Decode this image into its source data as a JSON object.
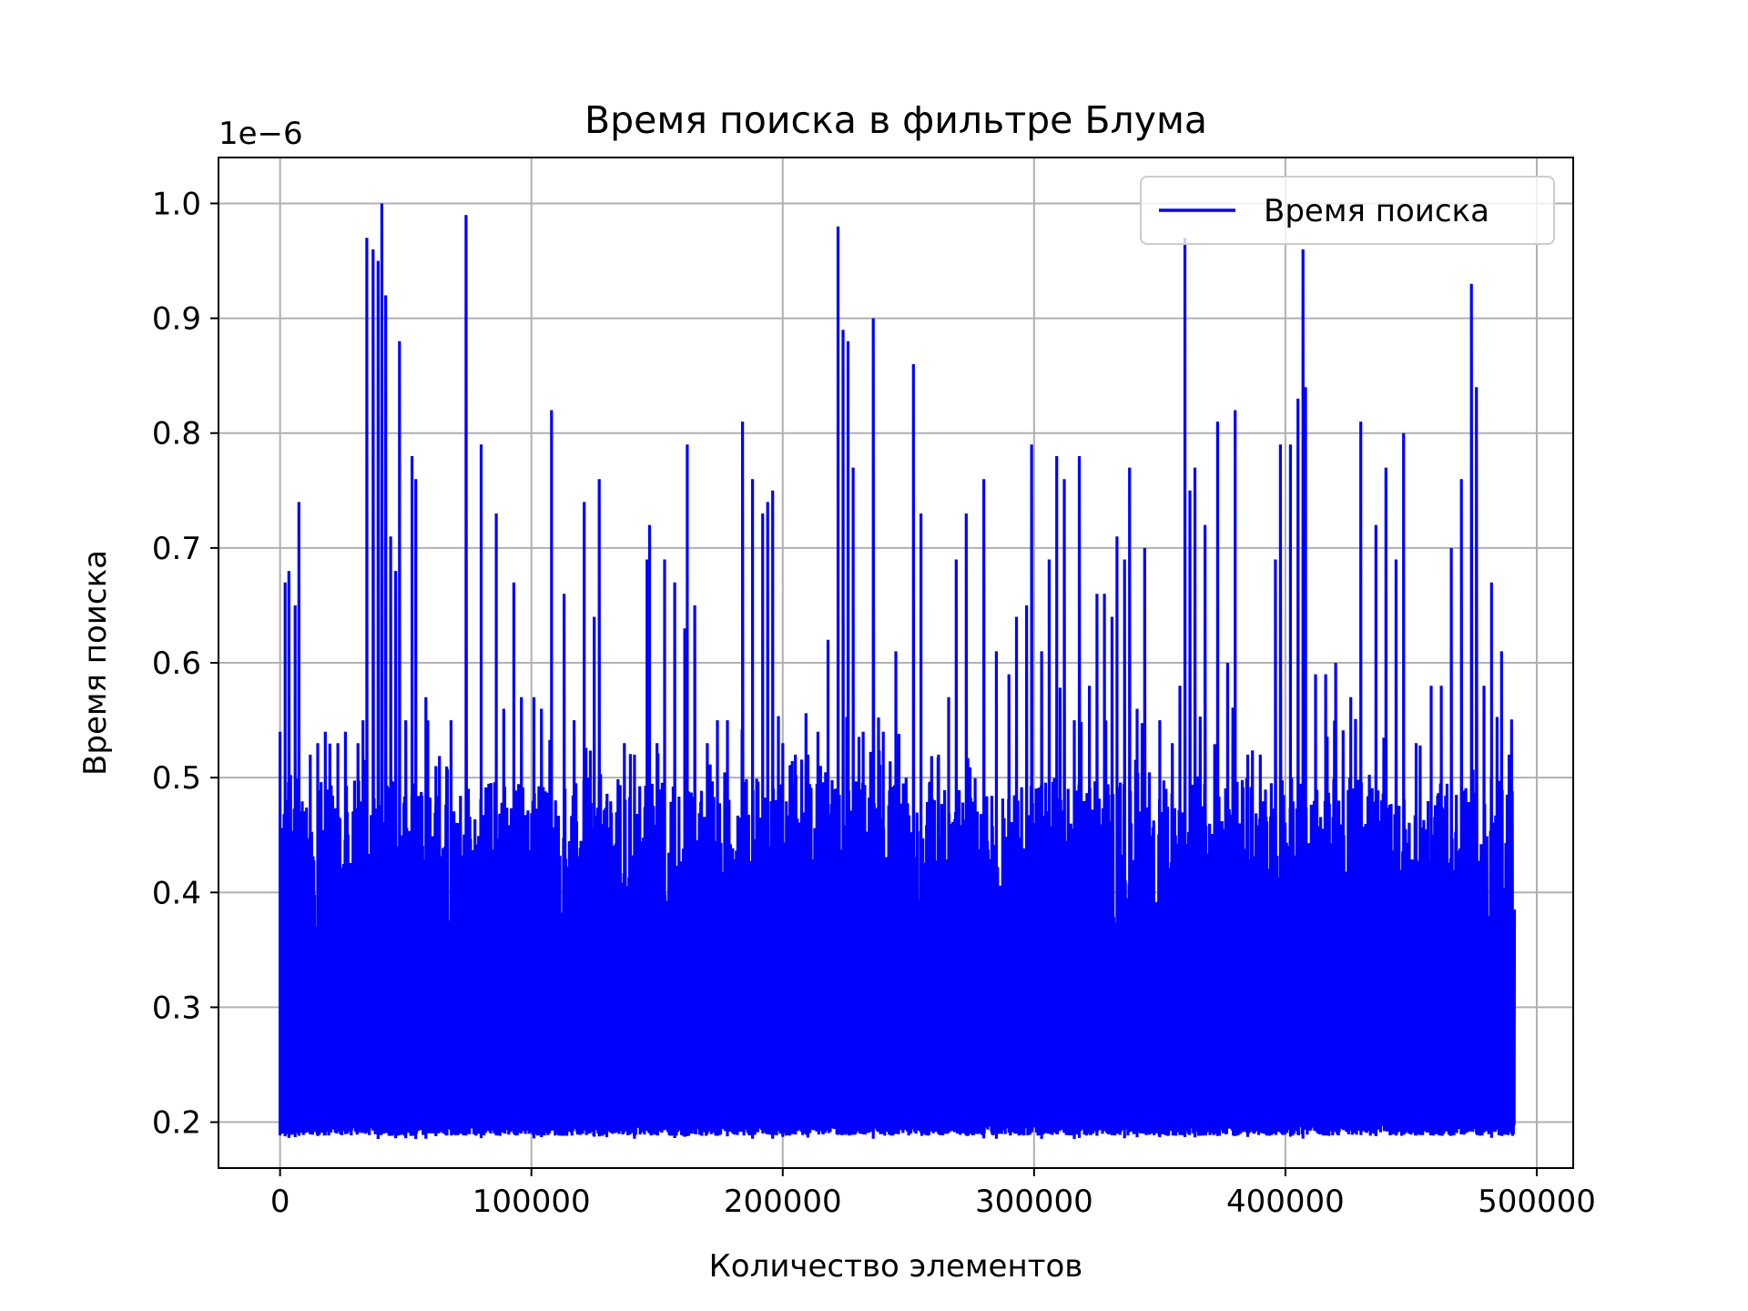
{
  "chart_data": {
    "type": "line",
    "title": "Время поиска в фильтре Блума",
    "xlabel": "Количество элементов",
    "ylabel": "Время поиска",
    "y_offset_label": "1e−6",
    "x_tick_labels": [
      "0",
      "100000",
      "200000",
      "300000",
      "400000",
      "500000"
    ],
    "x_ticks": [
      0,
      100000,
      200000,
      300000,
      400000,
      500000
    ],
    "y_tick_labels": [
      "0.2",
      "0.3",
      "0.4",
      "0.5",
      "0.6",
      "0.7",
      "0.8",
      "0.9",
      "1.0"
    ],
    "y_ticks": [
      0.2,
      0.3,
      0.4,
      0.5,
      0.6,
      0.7,
      0.8,
      0.9,
      1.0
    ],
    "xlim": [
      -24500,
      514500
    ],
    "ylim": [
      0.16,
      1.04
    ],
    "grid": true,
    "legend_position": "upper right",
    "series": [
      {
        "name": "Время поиска",
        "color": "#0000ff",
        "x_range": [
          0,
          491000
        ],
        "baseline_approx": 0.2,
        "dense_band_top_approx": 0.45,
        "peaks": [
          [
            0,
            0.54
          ],
          [
            2000,
            0.67
          ],
          [
            3500,
            0.68
          ],
          [
            6000,
            0.65
          ],
          [
            7500,
            0.74
          ],
          [
            12000,
            0.52
          ],
          [
            15000,
            0.53
          ],
          [
            18000,
            0.54
          ],
          [
            23000,
            0.53
          ],
          [
            26000,
            0.54
          ],
          [
            31000,
            0.53
          ],
          [
            33000,
            0.55
          ],
          [
            34500,
            0.97
          ],
          [
            37000,
            0.96
          ],
          [
            39000,
            0.95
          ],
          [
            40500,
            1.0
          ],
          [
            42000,
            0.92
          ],
          [
            44000,
            0.71
          ],
          [
            46000,
            0.68
          ],
          [
            47500,
            0.88
          ],
          [
            50000,
            0.55
          ],
          [
            52500,
            0.78
          ],
          [
            54000,
            0.76
          ],
          [
            58000,
            0.57
          ],
          [
            62000,
            0.51
          ],
          [
            68000,
            0.55
          ],
          [
            74000,
            0.99
          ],
          [
            80000,
            0.79
          ],
          [
            86000,
            0.73
          ],
          [
            89000,
            0.56
          ],
          [
            93000,
            0.67
          ],
          [
            96000,
            0.57
          ],
          [
            101000,
            0.57
          ],
          [
            104000,
            0.56
          ],
          [
            108000,
            0.82
          ],
          [
            113000,
            0.66
          ],
          [
            117000,
            0.55
          ],
          [
            121000,
            0.74
          ],
          [
            125000,
            0.64
          ],
          [
            127000,
            0.76
          ],
          [
            130000,
            0.48
          ],
          [
            137000,
            0.53
          ],
          [
            141000,
            0.52
          ],
          [
            146000,
            0.69
          ],
          [
            147000,
            0.72
          ],
          [
            150000,
            0.53
          ],
          [
            153000,
            0.69
          ],
          [
            157000,
            0.67
          ],
          [
            161000,
            0.63
          ],
          [
            162000,
            0.79
          ],
          [
            165000,
            0.65
          ],
          [
            170000,
            0.53
          ],
          [
            174000,
            0.55
          ],
          [
            178000,
            0.55
          ],
          [
            184000,
            0.81
          ],
          [
            188000,
            0.76
          ],
          [
            192000,
            0.73
          ],
          [
            194000,
            0.74
          ],
          [
            196000,
            0.75
          ],
          [
            200000,
            0.53
          ],
          [
            205000,
            0.52
          ],
          [
            210000,
            0.52
          ],
          [
            214000,
            0.54
          ],
          [
            218000,
            0.62
          ],
          [
            222000,
            0.98
          ],
          [
            224000,
            0.89
          ],
          [
            226000,
            0.88
          ],
          [
            228000,
            0.77
          ],
          [
            232000,
            0.54
          ],
          [
            236000,
            0.9
          ],
          [
            240000,
            0.54
          ],
          [
            245000,
            0.61
          ],
          [
            252000,
            0.86
          ],
          [
            255000,
            0.73
          ],
          [
            262000,
            0.52
          ],
          [
            266000,
            0.57
          ],
          [
            269000,
            0.69
          ],
          [
            273000,
            0.73
          ],
          [
            280000,
            0.76
          ],
          [
            285000,
            0.61
          ],
          [
            290000,
            0.59
          ],
          [
            293000,
            0.64
          ],
          [
            297000,
            0.65
          ],
          [
            299000,
            0.79
          ],
          [
            303000,
            0.61
          ],
          [
            306000,
            0.69
          ],
          [
            309000,
            0.78
          ],
          [
            312000,
            0.76
          ],
          [
            316000,
            0.55
          ],
          [
            318000,
            0.78
          ],
          [
            322000,
            0.58
          ],
          [
            325000,
            0.66
          ],
          [
            328000,
            0.66
          ],
          [
            331000,
            0.64
          ],
          [
            333000,
            0.71
          ],
          [
            336000,
            0.69
          ],
          [
            338000,
            0.77
          ],
          [
            341000,
            0.56
          ],
          [
            344000,
            0.7
          ],
          [
            350000,
            0.55
          ],
          [
            355000,
            0.53
          ],
          [
            358000,
            0.58
          ],
          [
            360000,
            0.97
          ],
          [
            362000,
            0.75
          ],
          [
            364000,
            0.77
          ],
          [
            368000,
            0.72
          ],
          [
            373000,
            0.81
          ],
          [
            377000,
            0.6
          ],
          [
            380000,
            0.82
          ],
          [
            385000,
            0.52
          ],
          [
            390000,
            0.52
          ],
          [
            396000,
            0.69
          ],
          [
            398000,
            0.79
          ],
          [
            402000,
            0.79
          ],
          [
            405000,
            0.83
          ],
          [
            407000,
            0.96
          ],
          [
            408000,
            0.84
          ],
          [
            412000,
            0.59
          ],
          [
            416000,
            0.59
          ],
          [
            420000,
            0.6
          ],
          [
            426000,
            0.57
          ],
          [
            430000,
            0.81
          ],
          [
            436000,
            0.72
          ],
          [
            440000,
            0.77
          ],
          [
            444000,
            0.69
          ],
          [
            447000,
            0.8
          ],
          [
            452000,
            0.53
          ],
          [
            458000,
            0.58
          ],
          [
            462000,
            0.58
          ],
          [
            466000,
            0.7
          ],
          [
            470000,
            0.76
          ],
          [
            474000,
            0.93
          ],
          [
            476000,
            0.84
          ],
          [
            479000,
            0.58
          ],
          [
            482000,
            0.67
          ],
          [
            486000,
            0.61
          ],
          [
            489000,
            0.52
          ]
        ]
      }
    ]
  }
}
